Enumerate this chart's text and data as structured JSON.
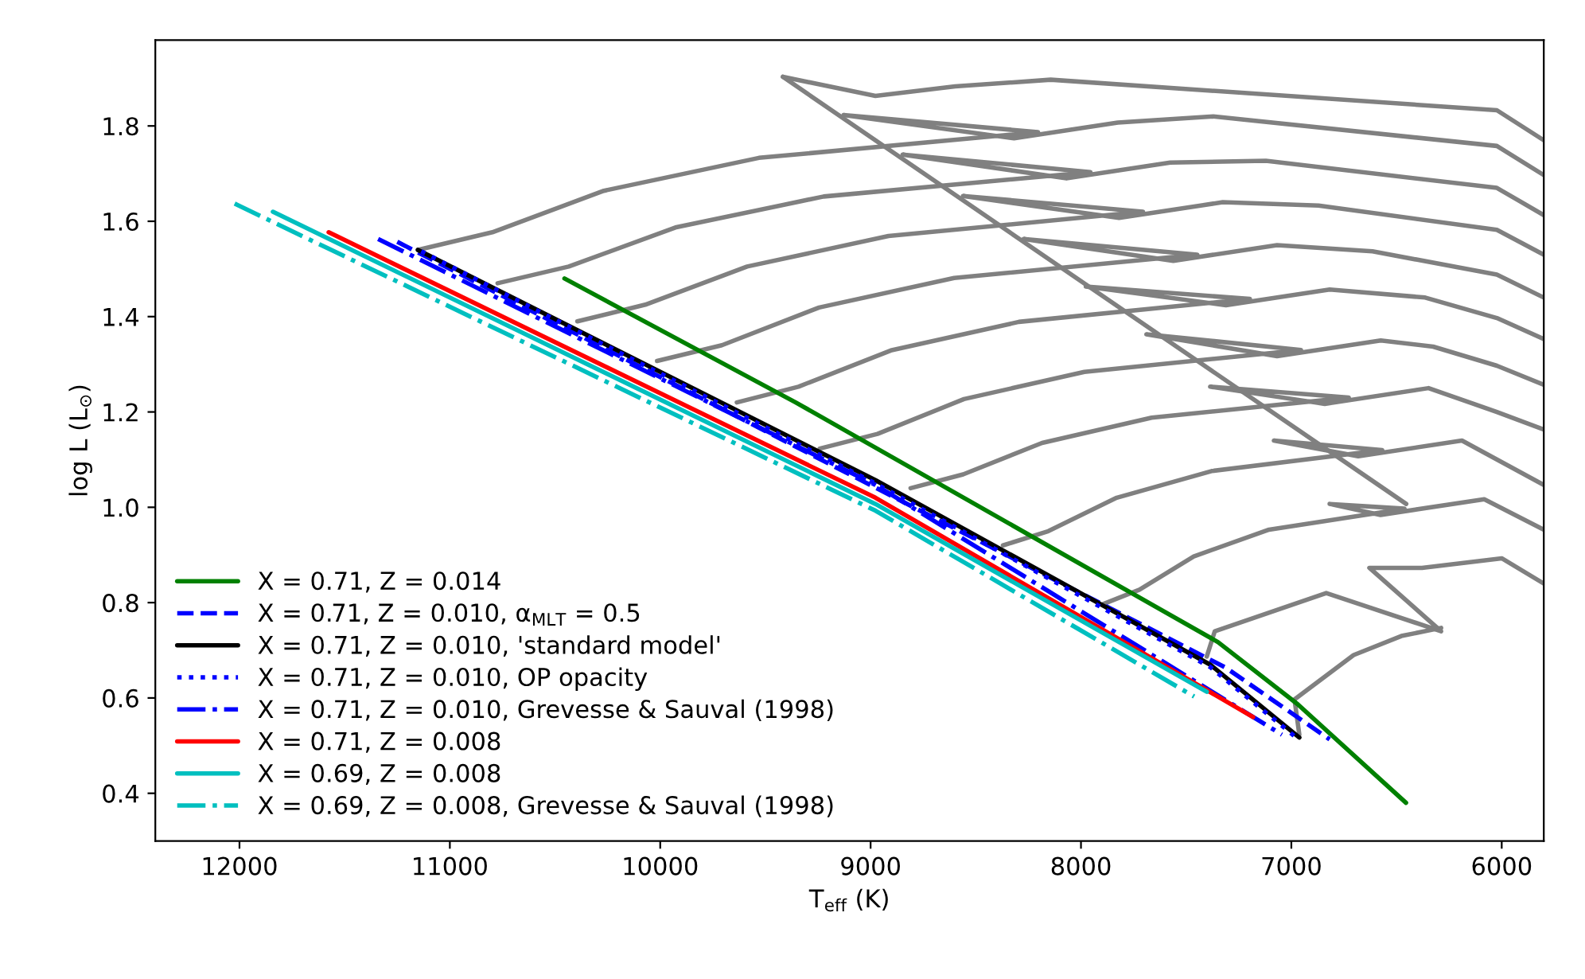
{
  "chart_data": {
    "type": "line",
    "xlabel": "T$_{eff}$ (K)",
    "ylabel": "log L (L$_{⊙}$)",
    "xlim": [
      12400,
      5800
    ],
    "xticks": [
      12000,
      11000,
      10000,
      9000,
      8000,
      7000,
      6000
    ],
    "ylim": [
      0.3,
      1.98
    ],
    "yticks": [
      0.4,
      0.6,
      0.8,
      {
        "value": 1.0,
        "label": "1.0"
      },
      1.2,
      1.4,
      1.6,
      1.8
    ],
    "grid": false,
    "legend": "bottom left",
    "series": [
      {
        "color": "#808080",
        "x": [
          11152,
          10798,
          10268,
          9531,
          8204,
          9129,
          8318,
          7825,
          7371,
          6023,
          5800
        ],
        "values": [
          1.54,
          1.577,
          1.664,
          1.733,
          1.787,
          1.823,
          1.774,
          1.807,
          1.82,
          1.758,
          1.697
        ]
      },
      {
        "color": "#808080",
        "x": [
          10773,
          10435,
          9928,
          9223,
          7955,
          8848,
          8069,
          7576,
          7121,
          6023,
          5800
        ],
        "values": [
          1.47,
          1.505,
          1.587,
          1.652,
          1.703,
          1.74,
          1.69,
          1.723,
          1.727,
          1.67,
          1.613
        ]
      },
      {
        "color": "#808080",
        "x": [
          10394,
          10071,
          9587,
          8915,
          7705,
          8561,
          7819,
          7326,
          6871,
          6023,
          5800
        ],
        "values": [
          1.39,
          1.425,
          1.505,
          1.569,
          1.62,
          1.653,
          1.607,
          1.64,
          1.633,
          1.582,
          1.53
        ]
      },
      {
        "color": "#808080",
        "x": [
          10015,
          9707,
          9245,
          8603,
          7447,
          8273,
          7561,
          7068,
          6614,
          6023,
          5800
        ],
        "values": [
          1.307,
          1.34,
          1.419,
          1.481,
          1.53,
          1.563,
          1.517,
          1.55,
          1.537,
          1.488,
          1.44
        ]
      },
      {
        "color": "#808080",
        "x": [
          9636,
          9343,
          8904,
          8295,
          7197,
          7977,
          7311,
          6818,
          6364,
          6023,
          5800
        ],
        "values": [
          1.22,
          1.253,
          1.329,
          1.389,
          1.437,
          1.463,
          1.424,
          1.457,
          1.44,
          1.397,
          1.353
        ]
      },
      {
        "color": "#808080",
        "x": [
          9242,
          8967,
          8556,
          7984,
          6954,
          7689,
          7068,
          6575,
          6326,
          6023,
          5800
        ],
        "values": [
          1.123,
          1.154,
          1.227,
          1.284,
          1.33,
          1.363,
          1.317,
          1.35,
          1.337,
          1.297,
          1.257
        ]
      },
      {
        "color": "#808080",
        "x": [
          8810,
          8560,
          8185,
          7664,
          6727,
          7386,
          6841,
          6348,
          6023,
          5800
        ],
        "values": [
          1.04,
          1.069,
          1.135,
          1.188,
          1.23,
          1.253,
          1.217,
          1.25,
          1.2,
          1.163
        ]
      },
      {
        "color": "#808080",
        "x": [
          8371,
          8155,
          7830,
          7379,
          6568,
          7083,
          6682,
          6189,
          5800
        ],
        "values": [
          0.92,
          0.95,
          1.02,
          1.076,
          1.12,
          1.14,
          1.107,
          1.14,
          1.047
        ]
      },
      {
        "color": "#808080",
        "x": [
          7894,
          7722,
          7464,
          7106,
          6462,
          6818,
          6576,
          6083,
          5800
        ],
        "values": [
          0.797,
          0.827,
          0.897,
          0.953,
          0.997,
          1.007,
          0.984,
          1.017,
          0.953
        ]
      },
      {
        "color": "#808080",
        "x": [
          7402,
          7364,
          6834,
          6288,
          6629,
          6379,
          6000,
          5800
        ],
        "values": [
          0.687,
          0.74,
          0.82,
          0.74,
          0.873,
          0.873,
          0.893,
          0.84
        ]
      },
      {
        "color": "#808080",
        "x": [
          6962,
          6985,
          6704,
          6477,
          6288
        ],
        "values": [
          0.523,
          0.597,
          0.69,
          0.73,
          0.747
        ]
      },
      {
        "color": "#808080",
        "x": [
          9417,
          8977,
          8598,
          8144,
          6023,
          5800
        ],
        "values": [
          1.903,
          1.863,
          1.883,
          1.897,
          1.833,
          1.77
        ]
      },
      {
        "color": "#808080",
        "x": [
          9417,
          6454
        ],
        "values": [
          1.903,
          1.007
        ]
      },
      {
        "name": "X = 0.71, Z = 0.014",
        "color": "#008000",
        "line_style": "solid",
        "x": [
          10455,
          9356,
          7348,
          6970,
          6455
        ],
        "values": [
          1.48,
          1.22,
          0.717,
          0.587,
          0.38
        ]
      },
      {
        "name": "X = 0.71, Z = 0.010, α$_{MLT}$ = 0.5",
        "color": "#0000ff",
        "line_style": "dashed",
        "x": [
          11250,
          7310,
          6818
        ],
        "values": [
          1.557,
          0.663,
          0.513
        ]
      },
      {
        "name": "X = 0.71, Z = 0.010, 'standard model'",
        "color": "#000000",
        "line_style": "solid",
        "x": [
          11152,
          8977,
          7386,
          6962
        ],
        "values": [
          1.54,
          1.057,
          0.67,
          0.517
        ]
      },
      {
        "name": "X = 0.71, Z = 0.010, OP opacity",
        "color": "#0000ff",
        "line_style": "dotted",
        "x": [
          11136,
          8977,
          7386,
          6985
        ],
        "values": [
          1.537,
          1.05,
          0.665,
          0.52
        ]
      },
      {
        "name": "X = 0.71, Z = 0.010, Grevesse & Sauval (1998)",
        "color": "#0000ff",
        "line_style": "dashdot",
        "x": [
          11341,
          8977,
          7045
        ],
        "values": [
          1.563,
          1.047,
          0.523
        ]
      },
      {
        "name": "X = 0.71, Z = 0.008",
        "color": "#ff0000",
        "line_style": "solid",
        "x": [
          11576,
          8977,
          7182
        ],
        "values": [
          1.577,
          1.02,
          0.56
        ]
      },
      {
        "name": "X = 0.69, Z = 0.008",
        "color": "#00bfbf",
        "line_style": "solid",
        "x": [
          11841,
          8977,
          7402
        ],
        "values": [
          1.62,
          1.007,
          0.613
        ]
      },
      {
        "name": "X = 0.69, Z = 0.008, Grevesse & Sauval (1998)",
        "color": "#00bfbf",
        "line_style": "dashdot",
        "x": [
          12023,
          8977,
          7462
        ],
        "values": [
          1.637,
          0.993,
          0.603
        ]
      }
    ]
  }
}
